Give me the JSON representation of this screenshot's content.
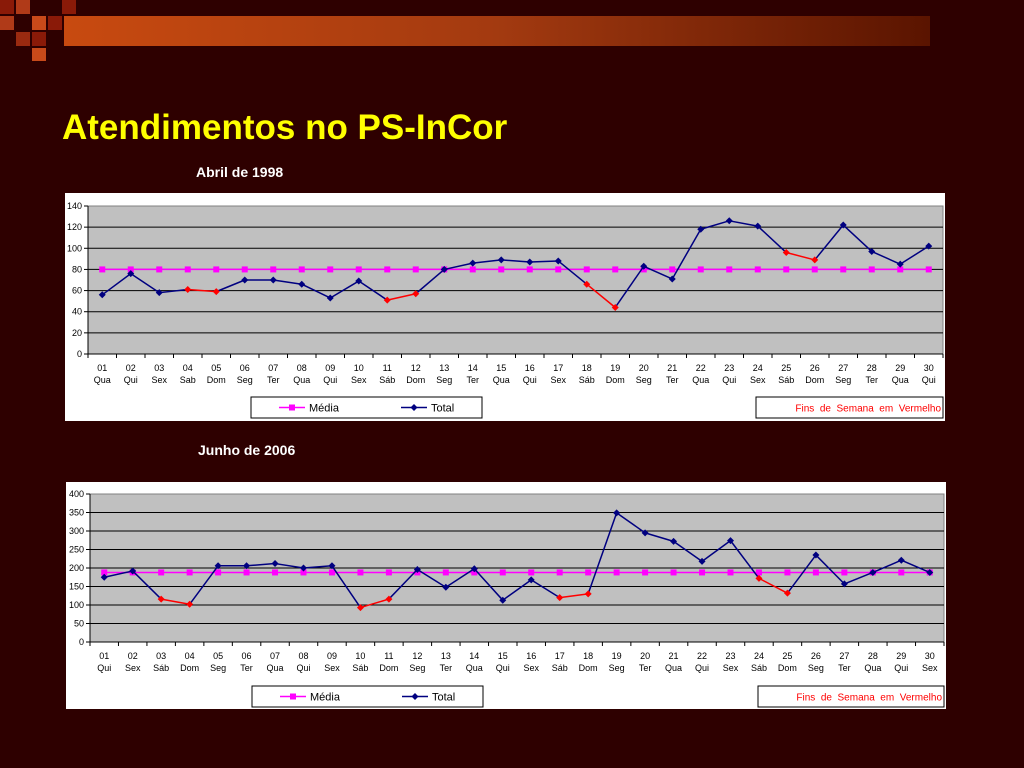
{
  "title": "Atendimentos no PS-InCor",
  "colors": {
    "background": "#2e0000",
    "title": "#ffff00",
    "media": "#ff00ff",
    "total": "#000080",
    "weekend": "#ff0000",
    "plot_bg": "#c0c0c0"
  },
  "chart_data": [
    {
      "type": "line",
      "title": "Abril de 1998",
      "categories": [
        [
          "01",
          "Qua"
        ],
        [
          "02",
          "Qui"
        ],
        [
          "03",
          "Sex"
        ],
        [
          "04",
          "Sab"
        ],
        [
          "05",
          "Dom"
        ],
        [
          "06",
          "Seg"
        ],
        [
          "07",
          "Ter"
        ],
        [
          "08",
          "Qua"
        ],
        [
          "09",
          "Qui"
        ],
        [
          "10",
          "Sex"
        ],
        [
          "11",
          "Sáb"
        ],
        [
          "12",
          "Dom"
        ],
        [
          "13",
          "Seg"
        ],
        [
          "14",
          "Ter"
        ],
        [
          "15",
          "Qua"
        ],
        [
          "16",
          "Qui"
        ],
        [
          "17",
          "Sex"
        ],
        [
          "18",
          "Sáb"
        ],
        [
          "19",
          "Dom"
        ],
        [
          "20",
          "Seg"
        ],
        [
          "21",
          "Ter"
        ],
        [
          "22",
          "Qua"
        ],
        [
          "23",
          "Qui"
        ],
        [
          "24",
          "Sex"
        ],
        [
          "25",
          "Sáb"
        ],
        [
          "26",
          "Dom"
        ],
        [
          "27",
          "Seg"
        ],
        [
          "28",
          "Ter"
        ],
        [
          "29",
          "Qua"
        ],
        [
          "30",
          "Qui"
        ]
      ],
      "series": [
        {
          "name": "Média",
          "values": [
            80,
            80,
            80,
            80,
            80,
            80,
            80,
            80,
            80,
            80,
            80,
            80,
            80,
            80,
            80,
            80,
            80,
            80,
            80,
            80,
            80,
            80,
            80,
            80,
            80,
            80,
            80,
            80,
            80,
            80
          ]
        },
        {
          "name": "Total",
          "values": [
            56,
            76,
            58,
            61,
            59,
            70,
            70,
            66,
            53,
            69,
            51,
            57,
            80,
            86,
            89,
            87,
            88,
            66,
            44,
            83,
            71,
            118,
            126,
            121,
            96,
            89,
            122,
            97,
            85,
            102
          ]
        }
      ],
      "weekend_indices": [
        3,
        4,
        10,
        11,
        17,
        18,
        24,
        25
      ],
      "ylim": [
        0,
        140
      ],
      "yticks": [
        0,
        20,
        40,
        60,
        80,
        100,
        120,
        140
      ],
      "legend_note": "Fins  de  Semana  em  Vermelho",
      "legend_position": "bottom",
      "grid": true
    },
    {
      "type": "line",
      "title": "Junho de 2006",
      "categories": [
        [
          "01",
          "Qui"
        ],
        [
          "02",
          "Sex"
        ],
        [
          "03",
          "Sáb"
        ],
        [
          "04",
          "Dom"
        ],
        [
          "05",
          "Seg"
        ],
        [
          "06",
          "Ter"
        ],
        [
          "07",
          "Qua"
        ],
        [
          "08",
          "Qui"
        ],
        [
          "09",
          "Sex"
        ],
        [
          "10",
          "Sáb"
        ],
        [
          "11",
          "Dom"
        ],
        [
          "12",
          "Seg"
        ],
        [
          "13",
          "Ter"
        ],
        [
          "14",
          "Qua"
        ],
        [
          "15",
          "Qui"
        ],
        [
          "16",
          "Sex"
        ],
        [
          "17",
          "Sáb"
        ],
        [
          "18",
          "Dom"
        ],
        [
          "19",
          "Seg"
        ],
        [
          "20",
          "Ter"
        ],
        [
          "21",
          "Qua"
        ],
        [
          "22",
          "Qui"
        ],
        [
          "23",
          "Sex"
        ],
        [
          "24",
          "Sáb"
        ],
        [
          "25",
          "Dom"
        ],
        [
          "26",
          "Seg"
        ],
        [
          "27",
          "Ter"
        ],
        [
          "28",
          "Qua"
        ],
        [
          "29",
          "Qui"
        ],
        [
          "30",
          "Sex"
        ]
      ],
      "series": [
        {
          "name": "Média",
          "values": [
            188,
            188,
            188,
            188,
            188,
            188,
            188,
            188,
            188,
            188,
            188,
            188,
            188,
            188,
            188,
            188,
            188,
            188,
            188,
            188,
            188,
            188,
            188,
            188,
            188,
            188,
            188,
            188,
            188,
            188
          ]
        },
        {
          "name": "Total",
          "values": [
            175,
            192,
            116,
            102,
            206,
            206,
            212,
            200,
            206,
            93,
            116,
            196,
            148,
            198,
            113,
            168,
            120,
            130,
            349,
            295,
            272,
            218,
            274,
            172,
            132,
            235,
            157,
            188,
            221,
            188
          ]
        }
      ],
      "weekend_indices": [
        2,
        3,
        9,
        10,
        16,
        17,
        23,
        24
      ],
      "ylim": [
        0,
        400
      ],
      "yticks": [
        0,
        50,
        100,
        150,
        200,
        250,
        300,
        350,
        400
      ],
      "legend_note": "Fins  de  Semana  em  Vermelho",
      "legend_position": "bottom",
      "grid": true
    }
  ]
}
